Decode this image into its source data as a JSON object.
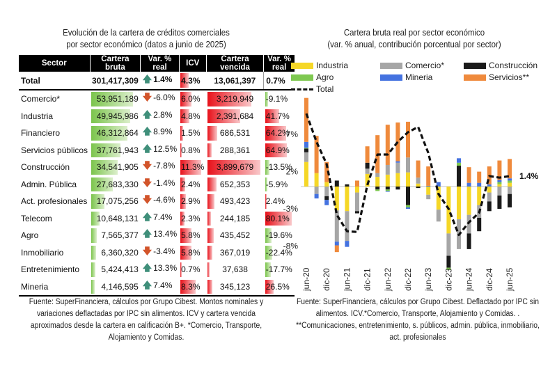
{
  "table": {
    "title_line1": "Evolución de la cartera de créditos comerciales",
    "title_line2": "por sector económico (datos a junio de 2025)",
    "headers": [
      "Sector",
      "Cartera bruta",
      "Var. % real",
      "ICV",
      "Cartera vencida",
      "Var. % real"
    ],
    "total": {
      "sector": "Total",
      "bruta": "301,417,309",
      "var": "1.4%",
      "var_dir": "up",
      "icv": "4.3%",
      "vencida": "13,061,397",
      "var2": "0.7%"
    },
    "rows": [
      {
        "sector": "Comercio*",
        "bruta": "53,951,189",
        "var": "-6.0%",
        "var_dir": "down",
        "icv": "6.0%",
        "vencida": "3,219,949",
        "var2": "-9.1%"
      },
      {
        "sector": "Industria",
        "bruta": "49,945,986",
        "var": "2.8%",
        "var_dir": "up",
        "icv": "4.8%",
        "vencida": "2,391,684",
        "var2": "41.7%"
      },
      {
        "sector": "Financiero",
        "bruta": "46,312,864",
        "var": "8.9%",
        "var_dir": "up",
        "icv": "1.5%",
        "vencida": "686,531",
        "var2": "64.2%"
      },
      {
        "sector": "Servicios públicos",
        "bruta": "37,761,943",
        "var": "12.5%",
        "var_dir": "up",
        "icv": "0.8%",
        "vencida": "288,361",
        "var2": "64.9%"
      },
      {
        "sector": "Construcción",
        "bruta": "34,541,905",
        "var": "-7.8%",
        "var_dir": "down",
        "icv": "11.3%",
        "vencida": "3,899,679",
        "var2": "-13.5%"
      },
      {
        "sector": "Admin. Pública",
        "bruta": "27,683,330",
        "var": "-1.4%",
        "var_dir": "down",
        "icv": "2.4%",
        "vencida": "652,353",
        "var2": "-5.9%"
      },
      {
        "sector": "Act. profesionales",
        "bruta": "17,075,256",
        "var": "-4.6%",
        "var_dir": "down",
        "icv": "2.9%",
        "vencida": "493,423",
        "var2": "2.4%"
      },
      {
        "sector": "Telecom",
        "bruta": "10,648,131",
        "var": "7.4%",
        "var_dir": "up",
        "icv": "2.3%",
        "vencida": "244,185",
        "var2": "80.1%"
      },
      {
        "sector": "Agro",
        "bruta": "7,565,377",
        "var": "13.4%",
        "var_dir": "up",
        "icv": "5.8%",
        "vencida": "435,452",
        "var2": "-19.6%"
      },
      {
        "sector": "Inmobiliario",
        "bruta": "6,360,320",
        "var": "-3.4%",
        "var_dir": "down",
        "icv": "5.8%",
        "vencida": "367,019",
        "var2": "-22.4%"
      },
      {
        "sector": "Entretenimiento",
        "bruta": "5,424,413",
        "var": "13.3%",
        "var_dir": "up",
        "icv": "0.7%",
        "vencida": "37,638",
        "var2": "-17.7%"
      },
      {
        "sector": "Mineria",
        "bruta": "4,146,595",
        "var": "7.4%",
        "var_dir": "up",
        "icv": "8.3%",
        "vencida": "345,123",
        "var2": "26.5%"
      }
    ],
    "note": "Fuente: SuperFinanciera, cálculos por Grupo Cibest. Montos nominales y variaciones deflactadas por IPC sin alimentos. ICV y  cartera vencida aproximados desde la cartera en calificación B+. *Comercio, Transporte, Alojamiento y Comidas.",
    "colors": {
      "header_bg": "#000000",
      "bar_green": "#7bc44c",
      "bar_red": "#e8111a",
      "arrow_up": "#3f8f7a",
      "arrow_down": "#d2542a"
    }
  },
  "chart_data": {
    "type": "bar",
    "stacked": true,
    "title": "Cartera bruta real por sector económico",
    "subtitle": "(var. % anual, contribución porcentual por sector)",
    "xlabel": "",
    "ylabel": "",
    "ylim": [
      -8,
      10
    ],
    "yticks": [
      7,
      2,
      -3,
      -8
    ],
    "ytick_labels": [
      "7%",
      "2%",
      "-3%",
      "-8%"
    ],
    "categories": [
      "jun-20",
      "sep-20",
      "dic-20",
      "mar-21",
      "jun-21",
      "sep-21",
      "dic-21",
      "mar-22",
      "jun-22",
      "sep-22",
      "dic-22",
      "mar-23",
      "jun-23",
      "sep-23",
      "dic-23",
      "mar-24",
      "jun-24",
      "sep-24",
      "dic-24",
      "mar-25",
      "jun-25"
    ],
    "xtick_labels": [
      "jun-20",
      "dic-20",
      "jun-21",
      "dic-21",
      "jun-22",
      "dic-22",
      "jun-23",
      "dic-23",
      "jun-24",
      "dic-24",
      "jun-25"
    ],
    "legend_position": "top",
    "series": [
      {
        "name": "Industria",
        "color": "#f5d727",
        "values": [
          3.3,
          1.8,
          0.6,
          -3.2,
          -3.3,
          -0.8,
          1.7,
          1.3,
          1.6,
          1.8,
          1.9,
          0.4,
          -1.1,
          -3.1,
          -6.3,
          -4.4,
          -3.8,
          -2.5,
          -0.8,
          0.3,
          0.5
        ]
      },
      {
        "name": "Comercio*",
        "color": "#a6a6a6",
        "values": [
          1.3,
          -1.0,
          -1.3,
          -4.2,
          -4.0,
          -2.5,
          0.7,
          0.5,
          1.3,
          1.4,
          2.0,
          0.8,
          -0.6,
          -1.6,
          -3.0,
          -4.0,
          -2.5,
          -1.7,
          -1.2,
          -1.2,
          -1.0
        ]
      },
      {
        "name": "Construcción",
        "color": "#1a1a1a",
        "values": [
          0.5,
          0,
          -0.5,
          0.8,
          0.3,
          -0.3,
          0.8,
          -0.4,
          -0.4,
          -0.4,
          -2.5,
          -0.2,
          0,
          0,
          -1.6,
          2.8,
          -2.1,
          -1.8,
          -1.3,
          -1.8,
          -1.8
        ]
      },
      {
        "name": "Agro",
        "color": "#7ec850",
        "values": [
          0.1,
          0,
          0,
          0,
          0,
          0,
          0,
          -0.2,
          -0.2,
          0,
          -0.3,
          0,
          0,
          0,
          -0.3,
          0.4,
          0,
          0,
          0,
          0.3,
          0.3
        ]
      },
      {
        "name": "Mineria",
        "color": "#4472e0",
        "values": [
          0.8,
          -0.6,
          -0.7,
          -0.5,
          -0.8,
          0,
          0,
          0,
          -0.1,
          0.2,
          -0.2,
          0,
          0.1,
          0.6,
          0,
          0.6,
          0.5,
          0.5,
          0.3,
          0.3,
          0.3
        ]
      },
      {
        "name": "Servicios**",
        "color": "#ef8a3c",
        "values": [
          5.9,
          5.0,
          2.7,
          -0.9,
          0,
          0.8,
          2.2,
          5.1,
          5.4,
          5.2,
          4.8,
          2.3,
          2.6,
          0,
          0,
          0,
          2.1,
          1.5,
          2.4,
          2.6,
          2.6
        ]
      }
    ],
    "total": {
      "name": "Total",
      "style": "dashed",
      "color": "#111111",
      "values": [
        9.8,
        6.0,
        3.0,
        -3.8,
        -6.0,
        -6.1,
        0.2,
        4.3,
        4.3,
        6.0,
        7.3,
        8.0,
        4.5,
        -1.0,
        -3.0,
        -6.5,
        -4.8,
        -3.5,
        1.4,
        1.2,
        1.4
      ]
    },
    "annotation": "1.4%",
    "note": "Fuente: SuperFinanciera, cálculos por Grupo Cibest. Deflactado por IPC sin alimentos. ICV.*Comercio, Transporte, Alojamiento y Comidas. . **Comunicaciones, entretenimiento, s. públicos, admin. pública, inmobiliario, act. profesionales"
  }
}
